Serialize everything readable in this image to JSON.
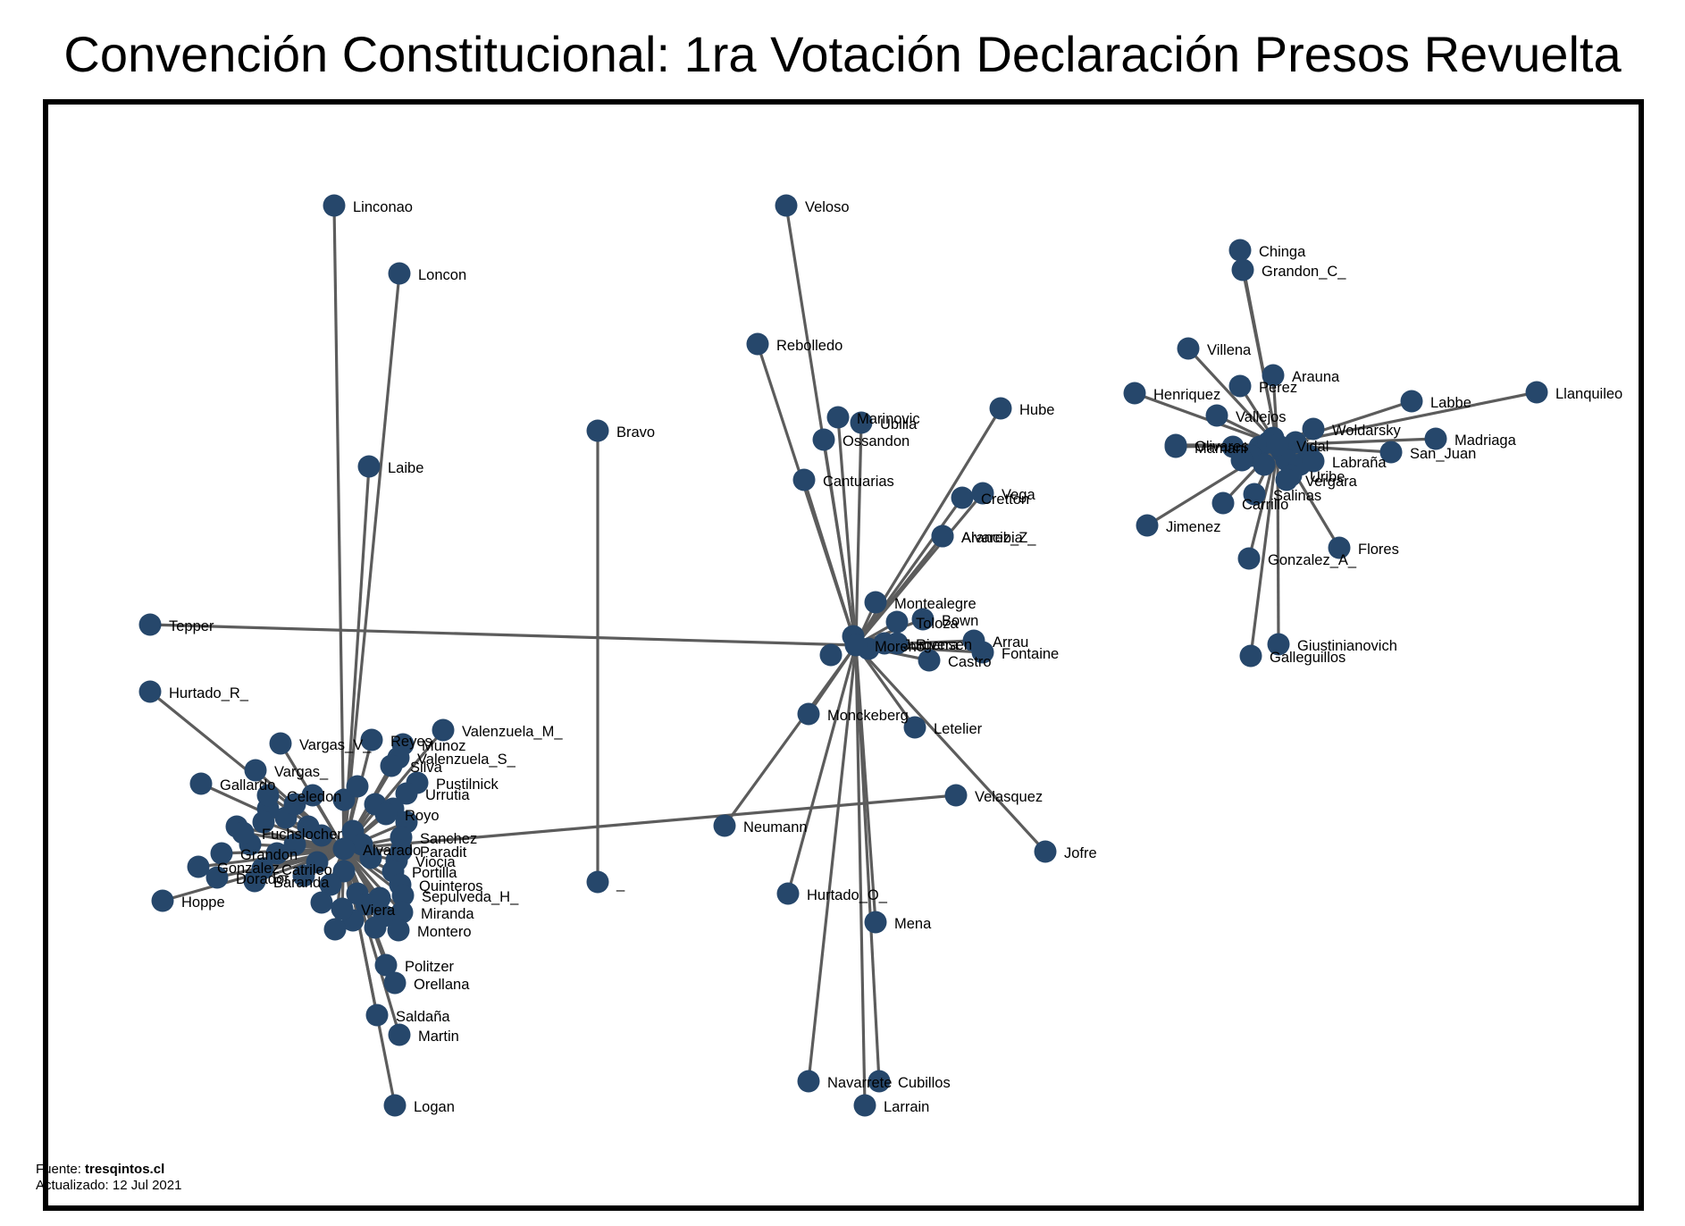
{
  "title": "Convención Constitucional: 1ra Votación Declaración Presos Revuelta",
  "footer": {
    "source_label": "Fuente: ",
    "source_value": "tresqintos.cl",
    "updated": "Actualizado: 12 Jul 2021"
  },
  "colors": {
    "node": "#26476b",
    "edge": "#5c5c5c",
    "frame": "#000000"
  },
  "hubs": {
    "left": "Alvarado",
    "center": "Moreno",
    "right": "Vidal"
  },
  "nodes": [
    {
      "name": "Linconao",
      "hub": "left"
    },
    {
      "name": "Loncon",
      "hub": "left"
    },
    {
      "name": "Laibe",
      "hub": "left"
    },
    {
      "name": "Tepper",
      "hub": "center"
    },
    {
      "name": "Hurtado_R_",
      "hub": "left"
    },
    {
      "name": "Vargas_V_",
      "hub": "left"
    },
    {
      "name": "Reyes",
      "hub": "left"
    },
    {
      "name": "Munoz",
      "hub": "left"
    },
    {
      "name": "Valenzuela_M_",
      "hub": "left"
    },
    {
      "name": "Valenzuela_S_",
      "hub": "left"
    },
    {
      "name": "Silva",
      "hub": "left"
    },
    {
      "name": "Pustilnick",
      "hub": "left"
    },
    {
      "name": "Urrutia",
      "hub": "left"
    },
    {
      "name": "Gallardo",
      "hub": "left"
    },
    {
      "name": "Vargas_",
      "hub": "left"
    },
    {
      "name": "Celedon",
      "hub": "left"
    },
    {
      "name": "Royo",
      "hub": "left"
    },
    {
      "name": "Sanchez",
      "hub": "left"
    },
    {
      "name": "Paradit",
      "hub": "left"
    },
    {
      "name": "Viocia",
      "hub": "left"
    },
    {
      "name": "Fuchslocher",
      "hub": "left"
    },
    {
      "name": "Grandon",
      "hub": "left"
    },
    {
      "name": "Gonzalez_",
      "hub": "left"
    },
    {
      "name": "Catrileo",
      "hub": "left"
    },
    {
      "name": "Dorador",
      "hub": "left"
    },
    {
      "name": "Baranda",
      "hub": "left"
    },
    {
      "name": "Hoppe",
      "hub": "left"
    },
    {
      "name": "Portilla",
      "hub": "left"
    },
    {
      "name": "Quinteros",
      "hub": "left"
    },
    {
      "name": "Sepulveda_H_",
      "hub": "left"
    },
    {
      "name": "Miranda",
      "hub": "left"
    },
    {
      "name": "Montero",
      "hub": "left"
    },
    {
      "name": "Viera",
      "hub": "left"
    },
    {
      "name": "Politzer",
      "hub": "left"
    },
    {
      "name": "Orellana",
      "hub": "left"
    },
    {
      "name": "Saldaña",
      "hub": "left"
    },
    {
      "name": "Martin",
      "hub": "left"
    },
    {
      "name": "Logan",
      "hub": "left"
    },
    {
      "name": "Velasquez",
      "hub": "left"
    },
    {
      "name": "Bravo",
      "hub": "none"
    },
    {
      "name": "_",
      "hub": "none"
    },
    {
      "name": "Veloso",
      "hub": "center"
    },
    {
      "name": "Rebolledo",
      "hub": "center"
    },
    {
      "name": "Marinovic",
      "hub": "center"
    },
    {
      "name": "Ubilla",
      "hub": "center"
    },
    {
      "name": "Ossandon",
      "hub": "center"
    },
    {
      "name": "Cantuarias",
      "hub": "center"
    },
    {
      "name": "Hube",
      "hub": "center"
    },
    {
      "name": "Vega",
      "hub": "center"
    },
    {
      "name": "Cretton",
      "hub": "center"
    },
    {
      "name": "Alvarez_Z_",
      "hub": "center"
    },
    {
      "name": "Arancibia",
      "hub": "center"
    },
    {
      "name": "Montealegre",
      "hub": "center"
    },
    {
      "name": "Toloza",
      "hub": "center"
    },
    {
      "name": "Rivera",
      "hub": "center"
    },
    {
      "name": "Jurgensen",
      "hub": "center"
    },
    {
      "name": "Bown",
      "hub": "center"
    },
    {
      "name": "Arrau",
      "hub": "center"
    },
    {
      "name": "Fontaine",
      "hub": "center"
    },
    {
      "name": "Castro",
      "hub": "center"
    },
    {
      "name": "Monckeberg",
      "hub": "center"
    },
    {
      "name": "Letelier",
      "hub": "center"
    },
    {
      "name": "Neumann",
      "hub": "center"
    },
    {
      "name": "Jofre",
      "hub": "center"
    },
    {
      "name": "Hurtado_O_",
      "hub": "center"
    },
    {
      "name": "Mena",
      "hub": "center"
    },
    {
      "name": "Navarrete",
      "hub": "center"
    },
    {
      "name": "Cubillos",
      "hub": "center"
    },
    {
      "name": "Larrain",
      "hub": "center"
    },
    {
      "name": "Chinga",
      "hub": "right"
    },
    {
      "name": "Grandon_C_",
      "hub": "right"
    },
    {
      "name": "Villena",
      "hub": "right"
    },
    {
      "name": "Arauna",
      "hub": "right"
    },
    {
      "name": "Perez",
      "hub": "right"
    },
    {
      "name": "Henriquez",
      "hub": "right"
    },
    {
      "name": "Labbe",
      "hub": "right"
    },
    {
      "name": "Llanquileo",
      "hub": "right"
    },
    {
      "name": "Vallejos",
      "hub": "right"
    },
    {
      "name": "Woldarsky",
      "hub": "right"
    },
    {
      "name": "Madriaga",
      "hub": "right"
    },
    {
      "name": "Olivares",
      "hub": "right"
    },
    {
      "name": "Mamani",
      "hub": "right"
    },
    {
      "name": "San_Juan",
      "hub": "right"
    },
    {
      "name": "Labraña",
      "hub": "right"
    },
    {
      "name": "Uribe",
      "hub": "right"
    },
    {
      "name": "Vergara",
      "hub": "right"
    },
    {
      "name": "Salinas",
      "hub": "right"
    },
    {
      "name": "Carrillo",
      "hub": "right"
    },
    {
      "name": "Jimenez",
      "hub": "right"
    },
    {
      "name": "Flores",
      "hub": "right"
    },
    {
      "name": "Gonzalez_A_",
      "hub": "right"
    },
    {
      "name": "Giustinianovich",
      "hub": "right"
    },
    {
      "name": "Galleguillos",
      "hub": "right"
    }
  ]
}
